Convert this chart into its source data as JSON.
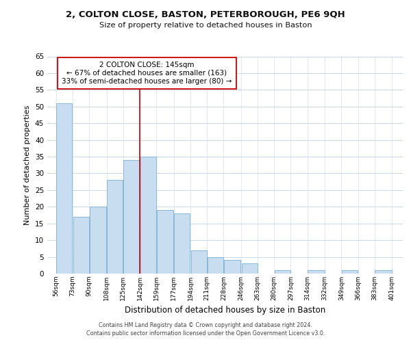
{
  "title1": "2, COLTON CLOSE, BASTON, PETERBOROUGH, PE6 9QH",
  "title2": "Size of property relative to detached houses in Baston",
  "xlabel": "Distribution of detached houses by size in Baston",
  "ylabel": "Number of detached properties",
  "bar_left_edges": [
    56,
    73,
    90,
    108,
    125,
    142,
    159,
    177,
    194,
    211,
    228,
    246,
    263,
    280,
    297,
    314,
    332,
    349,
    366,
    383
  ],
  "bar_widths": [
    17,
    17,
    18,
    17,
    17,
    17,
    18,
    17,
    17,
    17,
    18,
    17,
    17,
    17,
    17,
    18,
    17,
    17,
    17,
    18
  ],
  "bar_heights": [
    51,
    17,
    20,
    28,
    34,
    35,
    19,
    18,
    7,
    5,
    4,
    3,
    0,
    1,
    0,
    1,
    0,
    1,
    0,
    1
  ],
  "bar_color": "#c9ddf0",
  "bar_edgecolor": "#7bafd4",
  "vline_x": 142,
  "vline_color": "#cc0000",
  "annotation_text": "2 COLTON CLOSE: 145sqm\n← 67% of detached houses are smaller (163)\n33% of semi-detached houses are larger (80) →",
  "annotation_box_color": "#ffffff",
  "annotation_box_edgecolor": "#cc0000",
  "tick_labels": [
    "56sqm",
    "73sqm",
    "90sqm",
    "108sqm",
    "125sqm",
    "142sqm",
    "159sqm",
    "177sqm",
    "194sqm",
    "211sqm",
    "228sqm",
    "246sqm",
    "263sqm",
    "280sqm",
    "297sqm",
    "314sqm",
    "332sqm",
    "349sqm",
    "366sqm",
    "383sqm",
    "401sqm"
  ],
  "tick_positions": [
    56,
    73,
    90,
    108,
    125,
    142,
    159,
    177,
    194,
    211,
    228,
    246,
    263,
    280,
    297,
    314,
    332,
    349,
    366,
    383,
    401
  ],
  "ylim": [
    0,
    65
  ],
  "yticks": [
    0,
    5,
    10,
    15,
    20,
    25,
    30,
    35,
    40,
    45,
    50,
    55,
    60,
    65
  ],
  "footer1": "Contains HM Land Registry data © Crown copyright and database right 2024.",
  "footer2": "Contains public sector information licensed under the Open Government Licence v3.0.",
  "bg_color": "#ffffff",
  "grid_color": "#c8d8e8",
  "xlim_left": 47,
  "xlim_right": 412
}
